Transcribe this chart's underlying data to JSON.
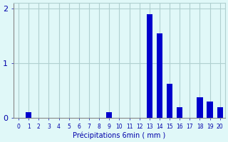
{
  "categories": [
    0,
    1,
    2,
    3,
    4,
    5,
    6,
    7,
    8,
    9,
    10,
    11,
    12,
    13,
    14,
    15,
    16,
    17,
    18,
    19,
    20
  ],
  "values": [
    0,
    0.1,
    0,
    0,
    0,
    0,
    0,
    0,
    0,
    0.1,
    0,
    0,
    0,
    1.9,
    1.55,
    0.62,
    0.2,
    0,
    0.37,
    0.3,
    0.2
  ],
  "bar_color": "#0000cc",
  "background_color": "#e0f8f8",
  "grid_color": "#b0d0d0",
  "axis_color": "#0000aa",
  "xlabel": "Précipitations 6min ( mm )",
  "ylim": [
    0,
    2.1
  ],
  "xlim": [
    -0.5,
    20.5
  ],
  "yticks": [
    0,
    1,
    2
  ]
}
